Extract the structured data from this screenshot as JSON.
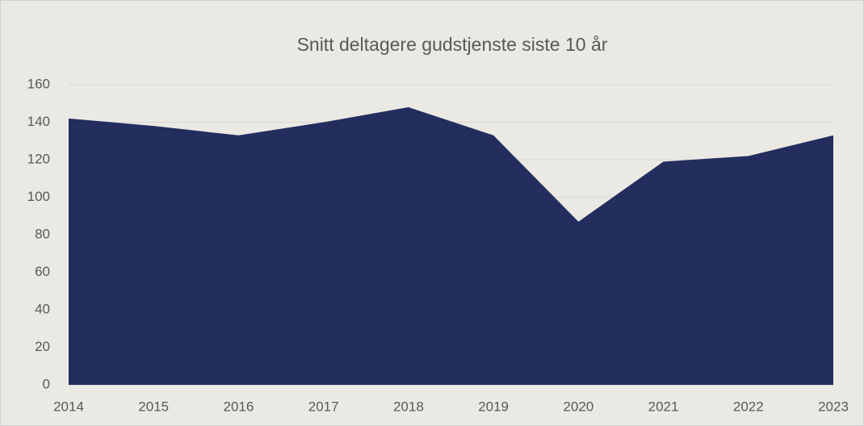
{
  "chart_data": {
    "type": "area",
    "title": "Snitt deltagere gudstjenste siste 10 år",
    "categories": [
      "2014",
      "2015",
      "2016",
      "2017",
      "2018",
      "2019",
      "2020",
      "2021",
      "2022",
      "2023"
    ],
    "values": [
      142,
      138,
      133,
      140,
      148,
      133,
      87,
      119,
      122,
      133
    ],
    "color": "#232d5e",
    "ylim": [
      0,
      160
    ],
    "yticks": [
      0,
      20,
      40,
      60,
      80,
      100,
      120,
      140,
      160
    ],
    "grid": true
  }
}
